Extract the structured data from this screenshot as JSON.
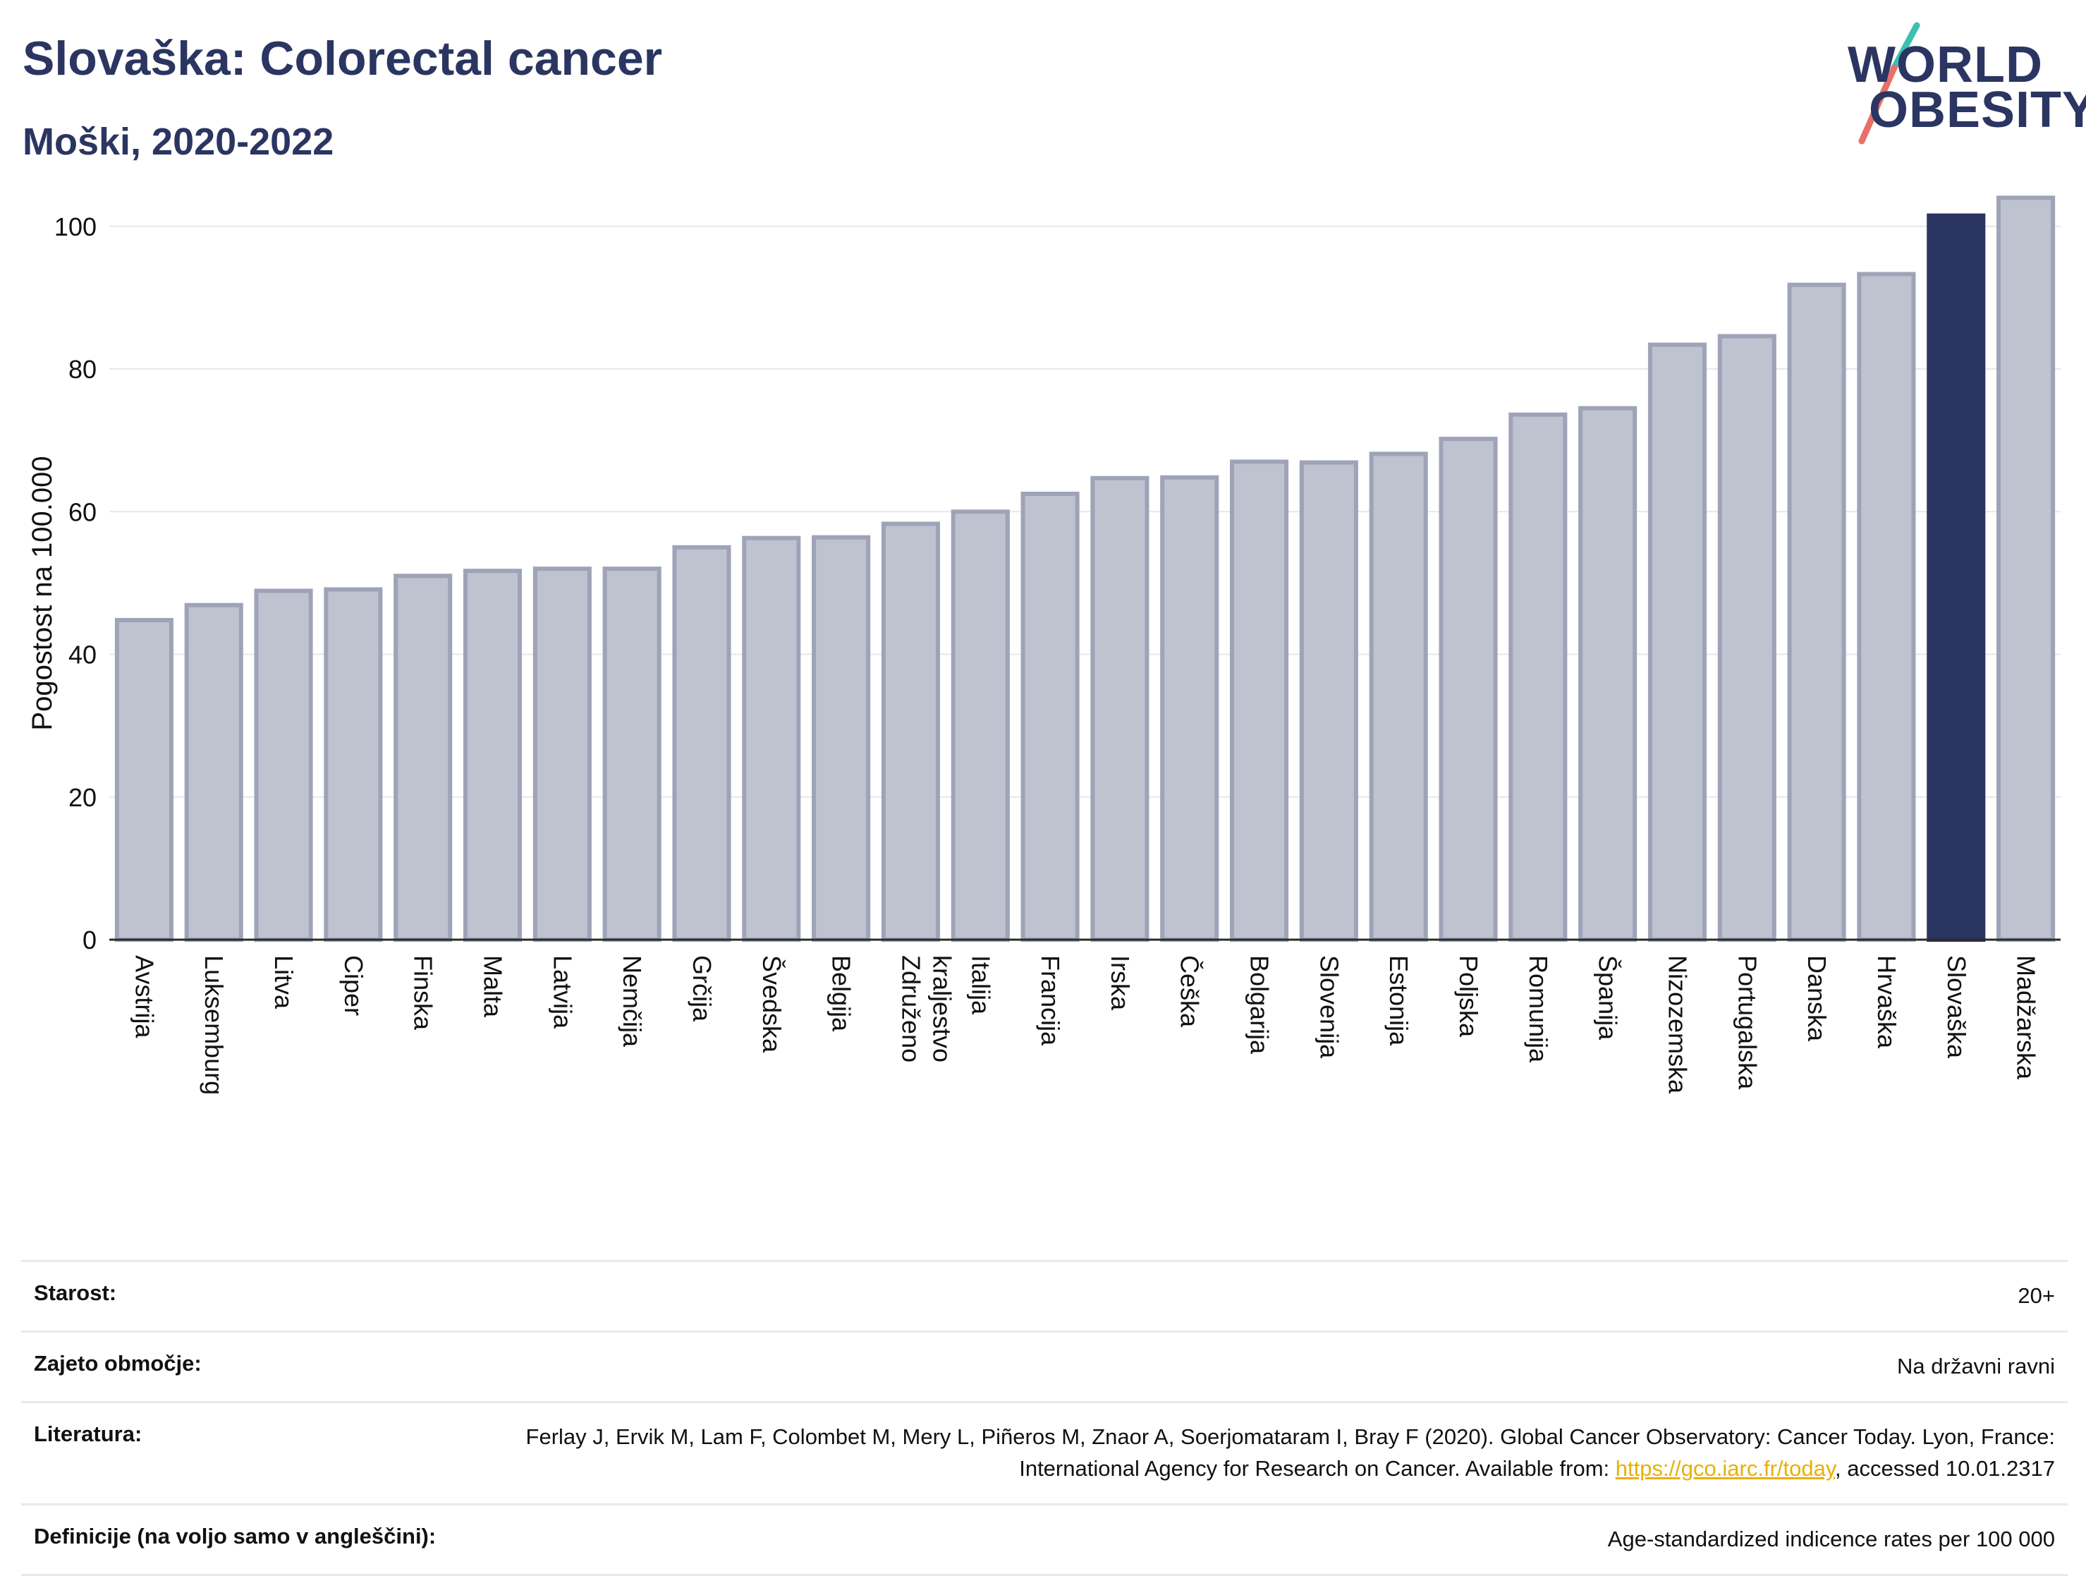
{
  "header": {
    "title": "Slovaška: Colorectal cancer",
    "subtitle": "Moški, 2020-2022"
  },
  "logo": {
    "line1": "WORLD",
    "line2": "OBESITY",
    "colors": {
      "text": "#2b3561",
      "slash_top": "#3dbfb4",
      "slash_bottom": "#e8706a"
    }
  },
  "chart_data": {
    "type": "bar",
    "ylabel": "Pogostost na 100.000",
    "ylim": [
      0,
      107
    ],
    "yticks": [
      0,
      20,
      40,
      60,
      80,
      100
    ],
    "grid": true,
    "categories": [
      "Avstrija",
      "Luksemburg",
      "Litva",
      "Ciper",
      "Finska",
      "Malta",
      "Latvija",
      "Nemčija",
      "Grčija",
      "Švedska",
      "Belgija",
      "Združeno kraljestvo",
      "Italija",
      "Francija",
      "Irska",
      "Češka",
      "Bolgarija",
      "Slovenija",
      "Estonija",
      "Poljska",
      "Romunija",
      "Španija",
      "Nizozemska",
      "Portugalska",
      "Danska",
      "Hrvaška",
      "Slovaška",
      "Madžarska"
    ],
    "values": [
      44.8,
      46.9,
      48.9,
      49.1,
      51.0,
      51.7,
      52.0,
      52.0,
      55.0,
      56.3,
      56.4,
      58.3,
      60.0,
      62.5,
      64.7,
      64.8,
      67.0,
      66.9,
      68.1,
      70.2,
      73.6,
      74.5,
      83.4,
      84.6,
      91.8,
      93.3,
      101.5,
      104.0
    ],
    "highlight": "Slovaška",
    "colors": {
      "bar": "#bfc2cf",
      "bar_border": "#9ea3b8",
      "highlight": "#2b3561"
    }
  },
  "meta": [
    {
      "label": "Starost:",
      "value": "20+"
    },
    {
      "label": "Zajeto območje:",
      "value": "Na državni ravni"
    },
    {
      "label": "Literatura:",
      "value_pre": "Ferlay J, Ervik M, Lam F, Colombet M, Mery L, Piñeros M, Znaor A, Soerjomataram I, Bray F (2020). Global Cancer Observatory: Cancer Today. Lyon, France: International Agency for Research on Cancer. Available from: ",
      "link": "https://gco.iarc.fr/today",
      "value_post": ", accessed 10.01.2317"
    },
    {
      "label": "Definicije (na voljo samo v angleščini):",
      "value": "Age-standardized indicence rates per 100 000"
    }
  ]
}
